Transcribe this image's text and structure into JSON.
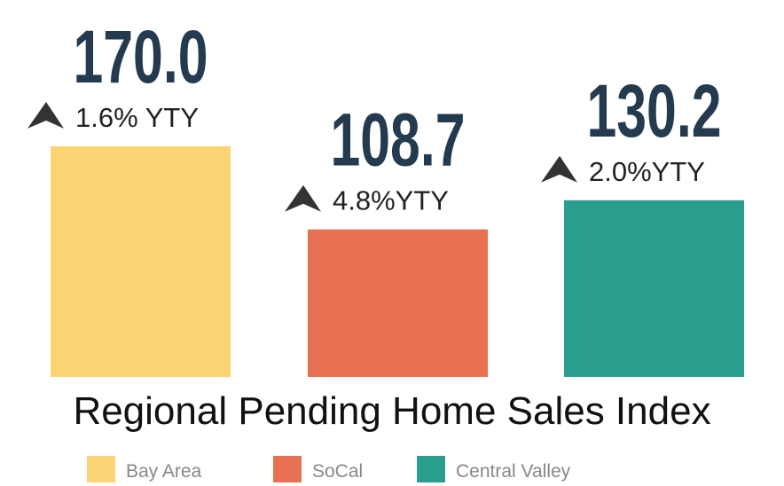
{
  "chart_data": {
    "type": "bar",
    "title": "Regional Pending Home Sales Index",
    "categories": [
      "Bay Area",
      "SoCal",
      "Central Valley"
    ],
    "values": [
      170.0,
      108.7,
      130.2
    ],
    "value_labels": [
      "170.0",
      "108.7",
      "130.2"
    ],
    "annotations": [
      "1.6% YTY",
      "4.8%YTY",
      "2.0%YTY"
    ],
    "colors": [
      "#fcd474",
      "#e67051",
      "#2a9d8e"
    ],
    "legend": "bottom"
  }
}
